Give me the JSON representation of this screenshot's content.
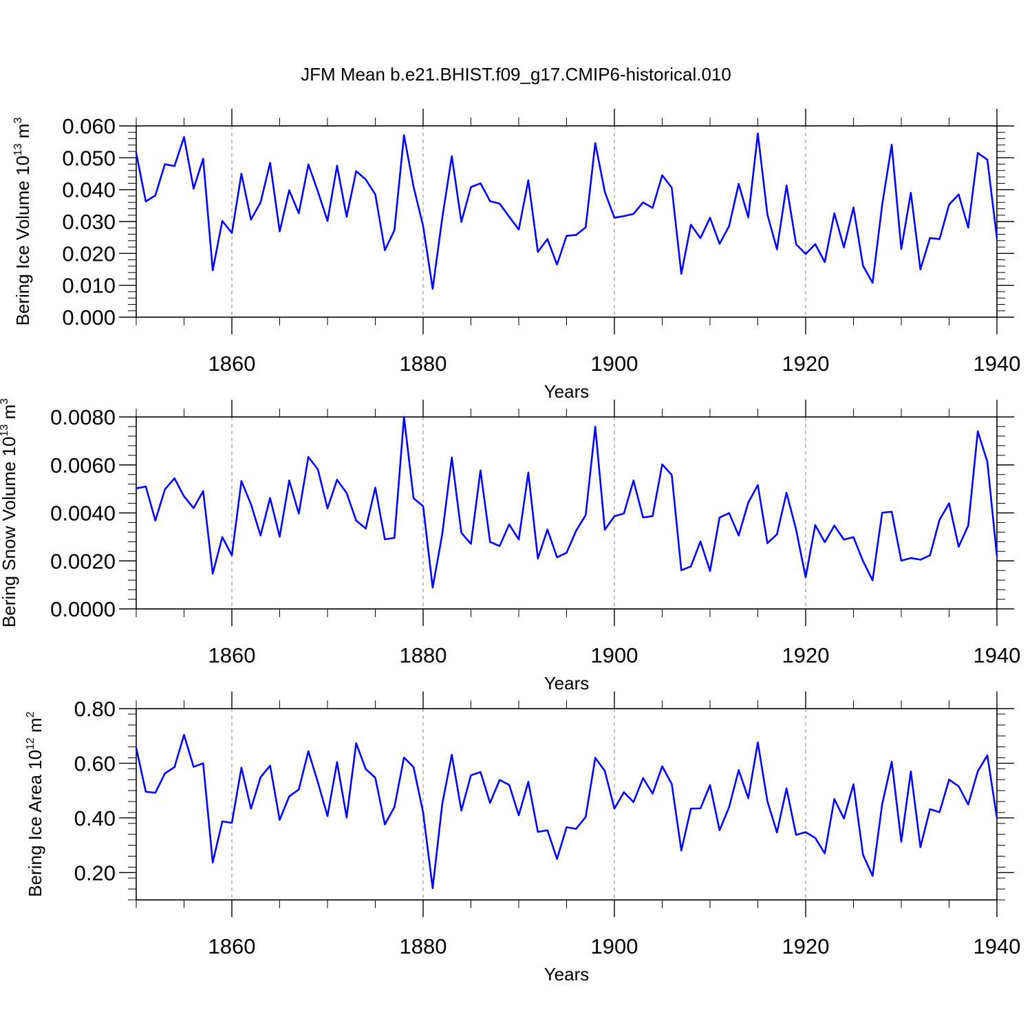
{
  "title": "JFM Mean b.e21.BHIST.f09_g17.CMIP6-historical.010",
  "styles": {
    "line_color": "#0000ff",
    "grid_color": "#999999",
    "axis_color": "#000000"
  },
  "chart_data": [
    {
      "type": "line",
      "name": "ice-volume",
      "ylabel_main": "Bering Ice Volume 10",
      "ylabel_exp": "13",
      "ylabel_unit": " m",
      "ylabel_unit_exp": "3",
      "xlabel": "Years",
      "xlim": [
        1850,
        1940
      ],
      "ylim": [
        0.0,
        0.06
      ],
      "yticks": [
        0.0,
        0.01,
        0.02,
        0.03,
        0.04,
        0.05,
        0.06
      ],
      "yticklabels": [
        "0.000",
        "0.010",
        "0.020",
        "0.030",
        "0.040",
        "0.050",
        "0.060"
      ],
      "xticks": [
        1860,
        1880,
        1900,
        1920,
        1940
      ],
      "xticklabels": [
        "1860",
        "1880",
        "1900",
        "1920",
        "1940"
      ],
      "grid_x": [
        1860,
        1880,
        1900,
        1920
      ],
      "y_start": 1850,
      "values": [
        0.0515,
        0.0363,
        0.0382,
        0.048,
        0.0474,
        0.0565,
        0.0403,
        0.0497,
        0.0147,
        0.0302,
        0.0264,
        0.045,
        0.0306,
        0.036,
        0.0484,
        0.0269,
        0.0398,
        0.0326,
        0.0479,
        0.0394,
        0.0302,
        0.0475,
        0.0315,
        0.0458,
        0.0432,
        0.0385,
        0.021,
        0.0273,
        0.0571,
        0.0409,
        0.0286,
        0.0089,
        0.0311,
        0.0505,
        0.0299,
        0.0408,
        0.042,
        0.0364,
        0.0356,
        0.0315,
        0.0275,
        0.0429,
        0.0205,
        0.0245,
        0.0165,
        0.0255,
        0.0258,
        0.0282,
        0.0546,
        0.0393,
        0.0312,
        0.0317,
        0.0324,
        0.036,
        0.0343,
        0.0445,
        0.0406,
        0.0136,
        0.029,
        0.0248,
        0.0312,
        0.023,
        0.0286,
        0.0418,
        0.0313,
        0.0576,
        0.0322,
        0.0213,
        0.0413,
        0.0229,
        0.0198,
        0.0229,
        0.0173,
        0.0326,
        0.0219,
        0.0344,
        0.0161,
        0.0108,
        0.0352,
        0.0541,
        0.0214,
        0.039,
        0.015,
        0.0248,
        0.0245,
        0.0353,
        0.0385,
        0.0281,
        0.0515,
        0.0494,
        0.0248
      ]
    },
    {
      "type": "line",
      "name": "snow-volume",
      "ylabel_main": "Bering Snow Volume 10",
      "ylabel_exp": "13",
      "ylabel_unit": " m",
      "ylabel_unit_exp": "3",
      "xlabel": "Years",
      "xlim": [
        1850,
        1940
      ],
      "ylim": [
        0.0,
        0.008
      ],
      "yticks": [
        0.0,
        0.002,
        0.004,
        0.006,
        0.008
      ],
      "yticklabels": [
        "0.0000",
        "0.0020",
        "0.0040",
        "0.0060",
        "0.0080"
      ],
      "xticks": [
        1860,
        1880,
        1900,
        1920,
        1940
      ],
      "xticklabels": [
        "1860",
        "1880",
        "1900",
        "1920",
        "1940"
      ],
      "grid_x": [
        1860,
        1880,
        1900,
        1920
      ],
      "y_start": 1850,
      "values": [
        0.00502,
        0.0051,
        0.00368,
        0.00498,
        0.00544,
        0.00469,
        0.0042,
        0.00491,
        0.00147,
        0.00299,
        0.00223,
        0.00533,
        0.00436,
        0.00306,
        0.00462,
        0.00301,
        0.00535,
        0.00397,
        0.00633,
        0.00581,
        0.00419,
        0.00538,
        0.00483,
        0.00368,
        0.00335,
        0.00505,
        0.0029,
        0.00296,
        0.008,
        0.00461,
        0.00428,
        0.00089,
        0.00311,
        0.00631,
        0.00317,
        0.00271,
        0.00577,
        0.00279,
        0.00262,
        0.00352,
        0.00289,
        0.00568,
        0.0021,
        0.00331,
        0.00215,
        0.00234,
        0.00326,
        0.00391,
        0.00759,
        0.0033,
        0.00386,
        0.00398,
        0.00535,
        0.00381,
        0.00387,
        0.00602,
        0.00558,
        0.00161,
        0.00177,
        0.00281,
        0.00158,
        0.00381,
        0.00399,
        0.00306,
        0.00443,
        0.00516,
        0.00274,
        0.00311,
        0.00484,
        0.00331,
        0.00132,
        0.00349,
        0.00278,
        0.00347,
        0.00289,
        0.00299,
        0.00199,
        0.00119,
        0.00401,
        0.00405,
        0.00201,
        0.00212,
        0.00205,
        0.00223,
        0.00371,
        0.0044,
        0.00259,
        0.00347,
        0.0074,
        0.00613,
        0.0022
      ]
    },
    {
      "type": "line",
      "name": "ice-area",
      "ylabel_main": "Bering Ice Area 10",
      "ylabel_exp": "12",
      "ylabel_unit": " m",
      "ylabel_unit_exp": "2",
      "xlabel": "Years",
      "xlim": [
        1850,
        1940
      ],
      "ylim": [
        0.1,
        0.8
      ],
      "yticks": [
        0.2,
        0.4,
        0.6,
        0.8
      ],
      "yticklabels": [
        "0.20",
        "0.40",
        "0.60",
        "0.80"
      ],
      "xticks": [
        1860,
        1880,
        1900,
        1920,
        1940
      ],
      "xticklabels": [
        "1860",
        "1880",
        "1900",
        "1920",
        "1940"
      ],
      "grid_x": [
        1860,
        1880,
        1900,
        1920
      ],
      "y_start": 1850,
      "values": [
        0.656,
        0.496,
        0.492,
        0.563,
        0.586,
        0.704,
        0.587,
        0.6,
        0.237,
        0.387,
        0.382,
        0.584,
        0.434,
        0.549,
        0.591,
        0.393,
        0.479,
        0.504,
        0.644,
        0.53,
        0.407,
        0.604,
        0.402,
        0.673,
        0.579,
        0.547,
        0.376,
        0.44,
        0.621,
        0.586,
        0.42,
        0.143,
        0.451,
        0.631,
        0.427,
        0.556,
        0.568,
        0.455,
        0.539,
        0.521,
        0.41,
        0.532,
        0.349,
        0.355,
        0.25,
        0.366,
        0.36,
        0.404,
        0.62,
        0.572,
        0.434,
        0.494,
        0.458,
        0.546,
        0.489,
        0.589,
        0.524,
        0.281,
        0.434,
        0.435,
        0.52,
        0.355,
        0.44,
        0.575,
        0.472,
        0.676,
        0.461,
        0.347,
        0.508,
        0.338,
        0.348,
        0.327,
        0.27,
        0.469,
        0.398,
        0.523,
        0.265,
        0.188,
        0.45,
        0.606,
        0.313,
        0.57,
        0.293,
        0.432,
        0.421,
        0.54,
        0.516,
        0.449,
        0.571,
        0.629,
        0.4
      ]
    }
  ]
}
